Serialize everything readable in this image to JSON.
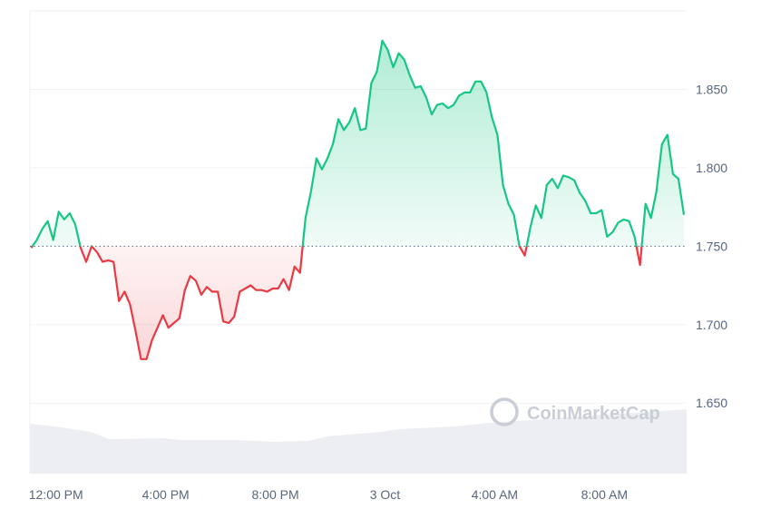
{
  "chart_data": {
    "type": "line",
    "watermark": "CoinMarketCap",
    "baseline": 1.75,
    "up_color": "#16c784",
    "down_color": "#ea3943",
    "grid": true,
    "xlim": [
      -0.95,
      23
    ],
    "xticks": [
      {
        "value": 0,
        "label": "12:00 PM"
      },
      {
        "value": 4,
        "label": "4:00 PM"
      },
      {
        "value": 8,
        "label": "8:00 PM"
      },
      {
        "value": 12,
        "label": "3 Oct"
      },
      {
        "value": 16,
        "label": "4:00 AM"
      },
      {
        "value": 20,
        "label": "8:00 AM"
      }
    ],
    "ylim": [
      1.605,
      1.9
    ],
    "yticks": [
      {
        "value": 1.65,
        "label": "1.650"
      },
      {
        "value": 1.7,
        "label": "1.700"
      },
      {
        "value": 1.75,
        "label": "1.750"
      },
      {
        "value": 1.8,
        "label": "1.800"
      },
      {
        "value": 1.85,
        "label": "1.850"
      }
    ],
    "x": [
      -0.9,
      -0.7,
      -0.5,
      -0.3,
      -0.1,
      0.1,
      0.3,
      0.5,
      0.7,
      0.9,
      1.1,
      1.3,
      1.5,
      1.7,
      1.9,
      2.1,
      2.3,
      2.5,
      2.7,
      2.9,
      3.1,
      3.3,
      3.5,
      3.7,
      3.9,
      4.1,
      4.3,
      4.5,
      4.7,
      4.9,
      5.1,
      5.3,
      5.5,
      5.7,
      5.9,
      6.1,
      6.3,
      6.5,
      6.7,
      6.9,
      7.1,
      7.3,
      7.5,
      7.7,
      7.9,
      8.1,
      8.3,
      8.5,
      8.7,
      8.9,
      9.1,
      9.3,
      9.5,
      9.7,
      9.9,
      10.1,
      10.3,
      10.5,
      10.7,
      10.9,
      11.1,
      11.3,
      11.5,
      11.7,
      11.9,
      12.1,
      12.3,
      12.5,
      12.7,
      12.9,
      13.1,
      13.3,
      13.5,
      13.7,
      13.9,
      14.1,
      14.3,
      14.5,
      14.7,
      14.9,
      15.1,
      15.3,
      15.5,
      15.7,
      15.9,
      16.1,
      16.3,
      16.5,
      16.7,
      16.9,
      17.1,
      17.3,
      17.5,
      17.7,
      17.9,
      18.1,
      18.3,
      18.5,
      18.7,
      18.9,
      19.1,
      19.3,
      19.5,
      19.7,
      19.9,
      20.1,
      20.3,
      20.5,
      20.7,
      20.9,
      21.1,
      21.3,
      21.5,
      21.7,
      21.9,
      22.1,
      22.3,
      22.5,
      22.7,
      22.9
    ],
    "values": [
      1.749,
      1.754,
      1.761,
      1.766,
      1.754,
      1.772,
      1.767,
      1.771,
      1.764,
      1.749,
      1.74,
      1.75,
      1.746,
      1.74,
      1.741,
      1.74,
      1.715,
      1.721,
      1.713,
      1.696,
      1.678,
      1.678,
      1.69,
      1.698,
      1.706,
      1.698,
      1.701,
      1.704,
      1.722,
      1.731,
      1.728,
      1.719,
      1.724,
      1.721,
      1.721,
      1.702,
      1.701,
      1.705,
      1.721,
      1.723,
      1.725,
      1.722,
      1.722,
      1.721,
      1.723,
      1.723,
      1.729,
      1.722,
      1.737,
      1.733,
      1.768,
      1.785,
      1.806,
      1.799,
      1.806,
      1.815,
      1.831,
      1.824,
      1.829,
      1.838,
      1.824,
      1.825,
      1.854,
      1.861,
      1.881,
      1.875,
      1.864,
      1.873,
      1.869,
      1.859,
      1.851,
      1.852,
      1.845,
      1.834,
      1.84,
      1.841,
      1.838,
      1.84,
      1.846,
      1.848,
      1.848,
      1.855,
      1.855,
      1.848,
      1.832,
      1.821,
      1.789,
      1.777,
      1.77,
      1.75,
      1.744,
      1.762,
      1.776,
      1.768,
      1.789,
      1.793,
      1.787,
      1.795,
      1.794,
      1.792,
      1.784,
      1.779,
      1.771,
      1.771,
      1.773,
      1.756,
      1.759,
      1.765,
      1.767,
      1.766,
      1.756,
      1.738,
      1.777,
      1.768,
      1.785,
      1.815,
      1.821,
      1.796,
      1.793,
      1.77
    ]
  }
}
